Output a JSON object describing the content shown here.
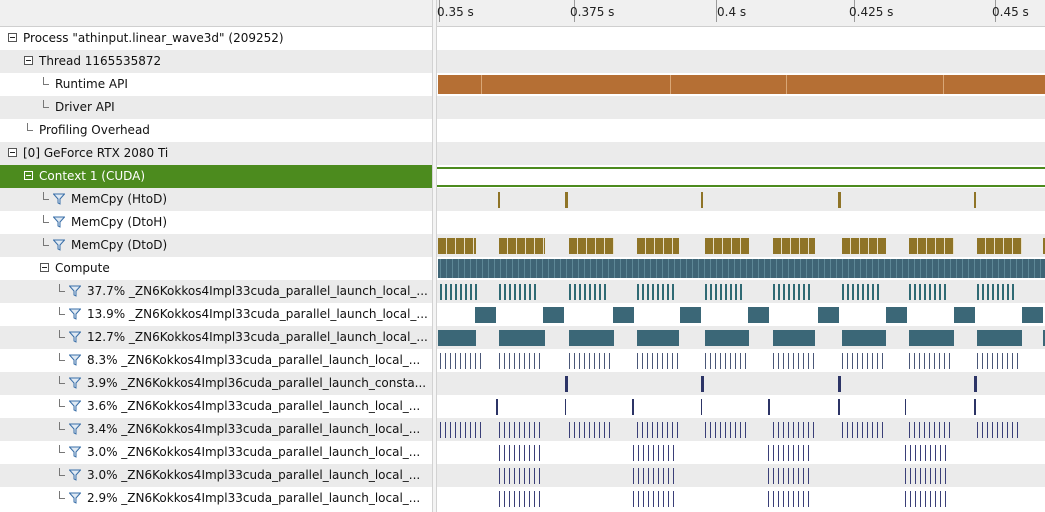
{
  "ruler": {
    "ticks": [
      "0.35 s",
      "0.375 s",
      "0.4 s",
      "0.425 s",
      "0.45 s"
    ]
  },
  "rows": [
    {
      "label": "Process \"athinput.linear_wave3d\" (209252)",
      "kind": "expander",
      "indent": 0
    },
    {
      "label": "Thread 1165535872",
      "kind": "expander",
      "indent": 1
    },
    {
      "label": "Runtime API",
      "kind": "leaf",
      "indent": 2
    },
    {
      "label": "Driver API",
      "kind": "leaf",
      "indent": 2
    },
    {
      "label": "Profiling Overhead",
      "kind": "leaf",
      "indent": 1
    },
    {
      "label": "[0] GeForce RTX 2080 Ti",
      "kind": "expander",
      "indent": 0
    },
    {
      "label": "Context 1 (CUDA)",
      "kind": "expander",
      "indent": 1,
      "selected": true
    },
    {
      "label": "MemCpy (HtoD)",
      "kind": "filter",
      "indent": 2
    },
    {
      "label": "MemCpy (DtoH)",
      "kind": "filter",
      "indent": 2
    },
    {
      "label": "MemCpy (DtoD)",
      "kind": "filter",
      "indent": 2
    },
    {
      "label": "Compute",
      "kind": "expander",
      "indent": 2
    },
    {
      "label": "37.7% _ZN6Kokkos4Impl33cuda_parallel_launch_local_...",
      "kind": "filter",
      "indent": 3
    },
    {
      "label": "13.9% _ZN6Kokkos4Impl33cuda_parallel_launch_local_...",
      "kind": "filter",
      "indent": 3
    },
    {
      "label": "12.7% _ZN6Kokkos4Impl33cuda_parallel_launch_local_...",
      "kind": "filter",
      "indent": 3
    },
    {
      "label": "8.3% _ZN6Kokkos4Impl33cuda_parallel_launch_local_...",
      "kind": "filter",
      "indent": 3
    },
    {
      "label": "3.9% _ZN6Kokkos4Impl36cuda_parallel_launch_consta...",
      "kind": "filter",
      "indent": 3
    },
    {
      "label": "3.6% _ZN6Kokkos4Impl33cuda_parallel_launch_local_...",
      "kind": "filter",
      "indent": 3
    },
    {
      "label": "3.4% _ZN6Kokkos4Impl33cuda_parallel_launch_local_...",
      "kind": "filter",
      "indent": 3
    },
    {
      "label": "3.0% _ZN6Kokkos4Impl33cuda_parallel_launch_local_...",
      "kind": "filter",
      "indent": 3
    },
    {
      "label": "3.0% _ZN6Kokkos4Impl33cuda_parallel_launch_local_...",
      "kind": "filter",
      "indent": 3
    },
    {
      "label": "2.9% _ZN6Kokkos4Impl33cuda_parallel_launch_local_...",
      "kind": "filter",
      "indent": 3
    }
  ],
  "colors": {
    "selected": "#4c8b1e",
    "runtime_api": "#b56f34",
    "memcpy": "#8f7427",
    "compute": "#3f6576",
    "kernel_teal": "#3b6777",
    "kernel_navy": "#2c3466",
    "kernel_line": "#2f6a74"
  }
}
